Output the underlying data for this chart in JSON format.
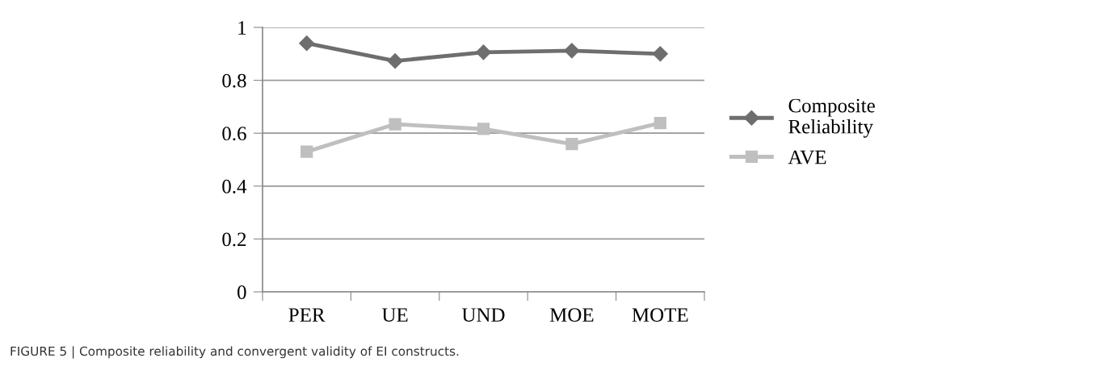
{
  "chart_data": {
    "type": "line",
    "categories": [
      "PER",
      "UE",
      "UND",
      "MOE",
      "MOTE"
    ],
    "series": [
      {
        "name": "Composite\nReliability",
        "color": "#6e6e6e",
        "marker": "diamond",
        "values": [
          0.94,
          0.873,
          0.906,
          0.912,
          0.9
        ]
      },
      {
        "name": "AVE",
        "color": "#bfbfbf",
        "marker": "square",
        "values": [
          0.53,
          0.634,
          0.616,
          0.559,
          0.638
        ]
      }
    ],
    "ylim": [
      0,
      1
    ],
    "yticks": [
      0,
      0.2,
      0.4,
      0.6,
      0.8,
      1
    ],
    "grid": "y",
    "legend": "right",
    "line_style": "solid",
    "annotations": [
      "FIGURE 5 | Composite reliability and convergent validity of EI constructs."
    ]
  }
}
